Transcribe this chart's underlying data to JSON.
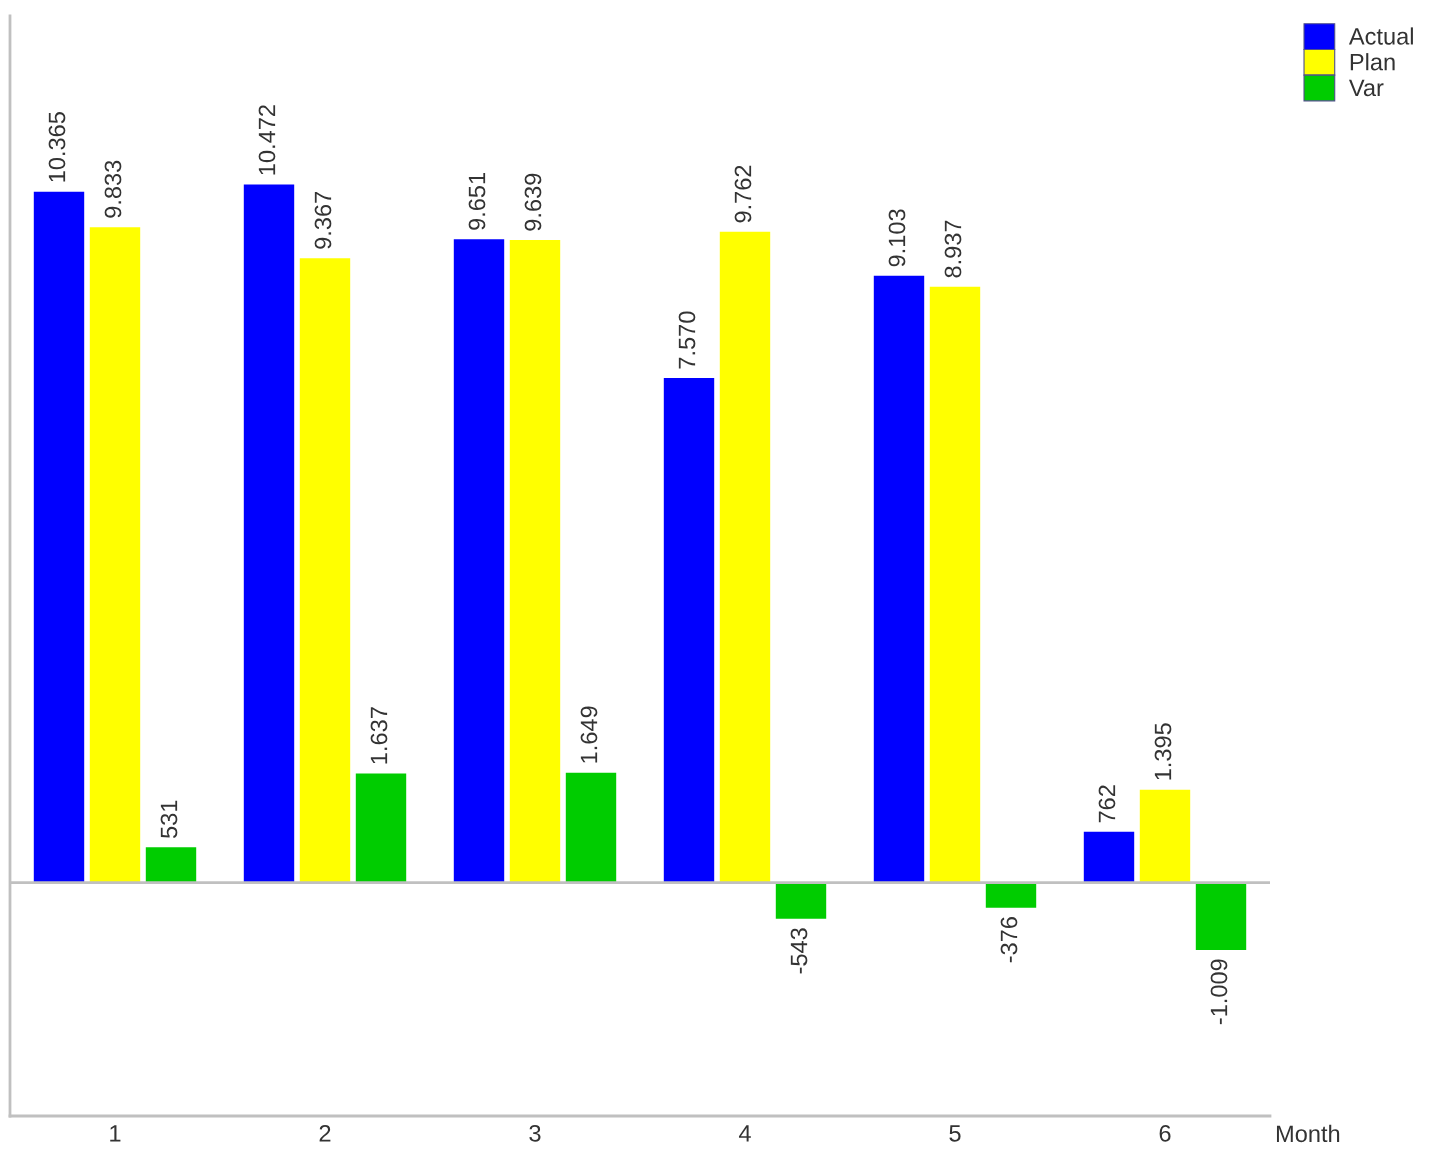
{
  "chart_data": {
    "type": "bar",
    "categories": [
      "1",
      "2",
      "3",
      "4",
      "5",
      "6"
    ],
    "xlabel": "Month",
    "series": [
      {
        "name": "Actual",
        "color": "#0000ff",
        "values": [
          10365,
          10472,
          9651,
          7570,
          9103,
          762
        ],
        "value_labels": [
          "10.365",
          "10.472",
          "9.651",
          "7.570",
          "9.103",
          "762"
        ]
      },
      {
        "name": "Plan",
        "color": "#ffff00",
        "values": [
          9833,
          9367,
          9639,
          9762,
          8937,
          1395
        ],
        "value_labels": [
          "9.833",
          "9.367",
          "9.639",
          "9.762",
          "8.937",
          "1.395"
        ]
      },
      {
        "name": "Var",
        "color": "#00cc00",
        "values": [
          531,
          1637,
          1649,
          -543,
          -376,
          -1009
        ],
        "value_labels": [
          "531",
          "1.637",
          "1.649",
          "-543",
          "-376",
          "-1.009"
        ]
      }
    ],
    "ylim": [
      -3500,
      13000
    ],
    "tick_labels": "x",
    "ref_lines": [
      {
        "axis": "y",
        "value": 0,
        "color": "#c0c0c0"
      }
    ],
    "legend": "top right"
  }
}
